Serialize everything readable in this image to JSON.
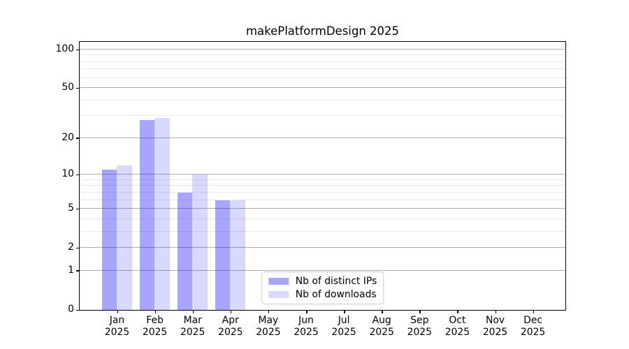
{
  "chart_data": {
    "type": "bar",
    "title": "makePlatformDesign 2025",
    "categories": [
      "Jan",
      "Feb",
      "Mar",
      "Apr",
      "May",
      "Jun",
      "Jul",
      "Aug",
      "Sep",
      "Oct",
      "Nov",
      "Dec"
    ],
    "x_year_line": "2025",
    "series": [
      {
        "name": "Nb of distinct IPs",
        "color_hex": "#A6A6FF",
        "color_rgba": "rgba(0,0,255,0.35)",
        "values": [
          11,
          28,
          7,
          6,
          0,
          0,
          0,
          0,
          0,
          0,
          0,
          0
        ]
      },
      {
        "name": "Nb of downloads",
        "color_hex": "#D9D9FF",
        "color_rgba": "rgba(0,0,255,0.15)",
        "values": [
          12,
          29,
          10,
          6,
          0,
          0,
          0,
          0,
          0,
          0,
          0,
          0
        ]
      }
    ],
    "xlabel": "",
    "ylabel": "",
    "yscale": "log1p",
    "ylim": [
      0,
      115
    ],
    "yticks_labeled": [
      0,
      1,
      2,
      5,
      10,
      20,
      50,
      100
    ],
    "gridlines_major": [
      1,
      2,
      5,
      10,
      20,
      50,
      100
    ],
    "gridlines_minor": [
      3,
      4,
      6,
      7,
      8,
      9,
      30,
      40,
      60,
      70,
      80,
      90
    ],
    "grid": true,
    "legend_position": "lower center"
  },
  "colors": {
    "grid_major": "#b0b0b0",
    "grid_minor": "#e8e8e8",
    "spine": "#000000",
    "text": "#000000",
    "legend_border": "#cccccc",
    "background": "#ffffff"
  }
}
